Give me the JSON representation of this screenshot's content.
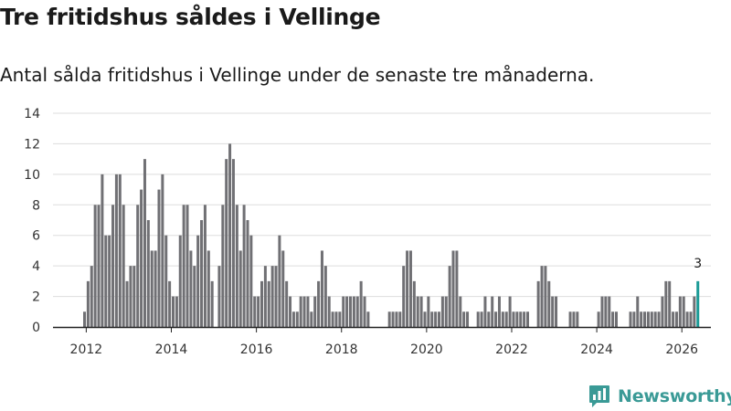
{
  "page": {
    "title": "Tre fritidshus såldes i Vellinge",
    "subtitle": "Antal sålda fritidshus i Vellinge under de senaste tre månaderna.",
    "brand": "Newsworthy"
  },
  "colors": {
    "bar": "#707074",
    "highlight": "#1a9a96",
    "grid": "#dddddd",
    "brand": "#3a9a96"
  },
  "chart_data": {
    "type": "bar",
    "title": "Tre fritidshus såldes i Vellinge",
    "subtitle": "Antal sålda fritidshus i Vellinge under de senaste tre månaderna.",
    "xlabel": "",
    "ylabel": "",
    "ylim": [
      0,
      14
    ],
    "yticks": [
      0,
      2,
      4,
      6,
      8,
      10,
      12,
      14
    ],
    "xticks": [
      {
        "label": "2012",
        "month_index": 0
      },
      {
        "label": "2014",
        "month_index": 24
      },
      {
        "label": "2016",
        "month_index": 48
      },
      {
        "label": "2018",
        "month_index": 72
      },
      {
        "label": "2020",
        "month_index": 96
      },
      {
        "label": "2022",
        "month_index": 120
      },
      {
        "label": "2024",
        "month_index": 144
      },
      {
        "label": "2026",
        "month_index": 168
      }
    ],
    "start_month": "2011-12",
    "highlight_label": "3",
    "values": [
      1,
      3,
      4,
      8,
      8,
      10,
      6,
      6,
      8,
      10,
      10,
      8,
      3,
      4,
      4,
      8,
      9,
      11,
      7,
      5,
      5,
      9,
      10,
      6,
      3,
      2,
      2,
      6,
      8,
      8,
      5,
      4,
      6,
      7,
      8,
      5,
      3,
      0,
      4,
      8,
      11,
      12,
      11,
      8,
      5,
      8,
      7,
      6,
      2,
      2,
      3,
      4,
      3,
      4,
      4,
      6,
      5,
      3,
      2,
      1,
      1,
      2,
      2,
      2,
      1,
      2,
      3,
      5,
      4,
      2,
      1,
      1,
      1,
      2,
      2,
      2,
      2,
      2,
      3,
      2,
      1,
      0,
      0,
      0,
      0,
      0,
      1,
      1,
      1,
      1,
      4,
      5,
      5,
      3,
      2,
      2,
      1,
      2,
      1,
      1,
      1,
      2,
      2,
      4,
      5,
      5,
      2,
      1,
      1,
      0,
      0,
      1,
      1,
      2,
      1,
      2,
      1,
      2,
      1,
      1,
      2,
      1,
      1,
      1,
      1,
      1,
      0,
      0,
      3,
      4,
      4,
      3,
      2,
      2,
      0,
      0,
      0,
      1,
      1,
      1,
      0,
      0,
      0,
      0,
      0,
      1,
      2,
      2,
      2,
      1,
      1,
      0,
      0,
      0,
      1,
      1,
      2,
      1,
      1,
      1,
      1,
      1,
      1,
      2,
      3,
      3,
      1,
      1,
      2,
      2,
      1,
      1,
      2,
      3
    ]
  }
}
